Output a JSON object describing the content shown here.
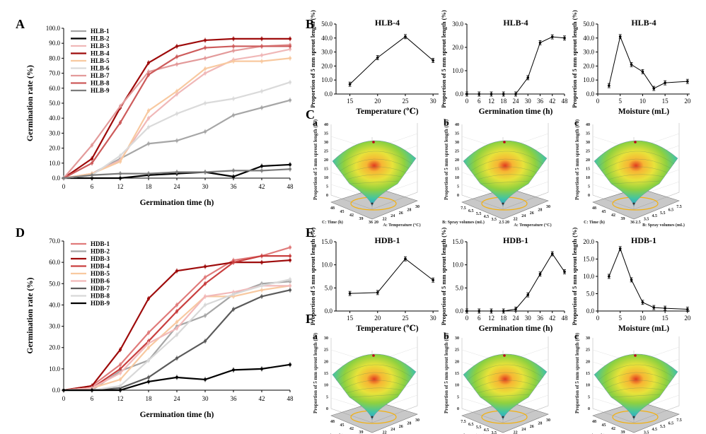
{
  "panel_labels": {
    "A": "A",
    "B": "B",
    "C": "C",
    "D": "D",
    "E": "E",
    "F": "F"
  },
  "colors": {
    "HLB-1": "#a6a6a6",
    "HLB-2": "#000000",
    "HLB-3": "#f0b8b8",
    "HLB-4": "#9e0b0b",
    "HLB-5": "#f8c9a0",
    "HLB-6": "#dadada",
    "HLB-7": "#e39a9a",
    "HLB-8": "#cd5b5b",
    "HLB-9": "#7c7c7c",
    "HDB-1": "#e07b7b",
    "HDB-2": "#a6a6a6",
    "HDB-3": "#9e0b0b",
    "HDB-4": "#c94040",
    "HDB-5": "#f8c9a0",
    "HDB-6": "#f2b9b9",
    "HDB-7": "#5a5a5a",
    "HDB-8": "#d8d8d8",
    "HDB-9": "#000000"
  },
  "chart_data": [
    {
      "id": "A",
      "type": "line",
      "title": "",
      "xlabel": "Germination time (h)",
      "ylabel": "Germination rate (%)",
      "x": [
        0,
        6,
        12,
        18,
        24,
        30,
        36,
        42,
        48
      ],
      "xlim": [
        0,
        48
      ],
      "ylim": [
        0,
        100
      ],
      "yticks": [
        "0.0",
        "10.0",
        "20.0",
        "30.0",
        "40.0",
        "50.0",
        "60.0",
        "70.0",
        "80.0",
        "90.0",
        "100.0"
      ],
      "series": [
        {
          "name": "HLB-1",
          "values": [
            0,
            3,
            13,
            23,
            25,
            31,
            42,
            47,
            52
          ]
        },
        {
          "name": "HLB-2",
          "values": [
            0,
            0,
            0,
            2,
            3,
            4,
            1,
            8,
            9
          ]
        },
        {
          "name": "HLB-3",
          "values": [
            0,
            3,
            12,
            40,
            56,
            70,
            79,
            82,
            86
          ]
        },
        {
          "name": "HLB-4",
          "values": [
            0,
            13,
            47,
            77,
            88,
            92,
            93,
            93,
            93
          ]
        },
        {
          "name": "HLB-5",
          "values": [
            0,
            3,
            11,
            45,
            58,
            73,
            78,
            78,
            80
          ]
        },
        {
          "name": "HLB-6",
          "values": [
            0,
            2,
            15,
            34,
            43,
            50,
            53,
            58,
            64
          ]
        },
        {
          "name": "HLB-7",
          "values": [
            0,
            22,
            48,
            71,
            76,
            80,
            85,
            88,
            89
          ]
        },
        {
          "name": "HLB-8",
          "values": [
            0,
            10,
            37,
            69,
            81,
            87,
            88,
            88,
            88
          ]
        },
        {
          "name": "HLB-9",
          "values": [
            0,
            2,
            3,
            3,
            4,
            4,
            5,
            5,
            6
          ]
        }
      ]
    },
    {
      "id": "B1",
      "type": "line",
      "title": "HLB-4",
      "xlabel": "Temperature (℃)",
      "ylabel": "Proportion of 5 mm sprout length (%)",
      "x": [
        15,
        20,
        25,
        30
      ],
      "xlim": [
        12.5,
        31
      ],
      "ylim": [
        0,
        50
      ],
      "xticks": [
        "15",
        "20",
        "25",
        "30"
      ],
      "yticks": [
        "0.0",
        "10.0",
        "20.0",
        "30.0",
        "40.0",
        "50.0"
      ],
      "values": [
        7,
        26,
        41,
        24
      ]
    },
    {
      "id": "B2",
      "type": "line",
      "title": "HLB-4",
      "xlabel": "Germination time (h)",
      "ylabel": "Proportion of 5 mm sprout length (%)",
      "x": [
        0,
        6,
        12,
        18,
        24,
        30,
        36,
        42,
        48
      ],
      "xlim": [
        0,
        48
      ],
      "ylim": [
        0,
        30
      ],
      "xticks": [
        "0",
        "6",
        "12",
        "18",
        "24",
        "30",
        "36",
        "42",
        "48"
      ],
      "yticks": [
        "0.0",
        "10.0",
        "20.0",
        "30.0"
      ],
      "values": [
        0,
        0,
        0,
        0,
        0,
        7,
        22,
        24.5,
        24
      ]
    },
    {
      "id": "B3",
      "type": "line",
      "title": "HLB-4",
      "xlabel": "Moisture (mL)",
      "ylabel": "Proportion of 5 mm sprout length (%)",
      "x": [
        2.5,
        5,
        7.5,
        10,
        12.5,
        15,
        20
      ],
      "xlim": [
        0,
        20.5
      ],
      "ylim": [
        0,
        50
      ],
      "xticks": [
        "0",
        "5",
        "10",
        "15",
        "20"
      ],
      "yticks": [
        "0.0",
        "10.0",
        "20.0",
        "30.0",
        "40.0",
        "50.0"
      ],
      "values": [
        6,
        41,
        21,
        16,
        4,
        8,
        9
      ]
    },
    {
      "id": "D",
      "type": "line",
      "title": "",
      "xlabel": "Germination time (h)",
      "ylabel": "Germination rate (%)",
      "x": [
        0,
        6,
        12,
        18,
        24,
        30,
        36,
        42,
        48
      ],
      "xlim": [
        0,
        48
      ],
      "ylim": [
        0,
        70
      ],
      "yticks": [
        "0.0",
        "10.0",
        "20.0",
        "30.0",
        "40.0",
        "50.0",
        "60.0",
        "70.0"
      ],
      "series": [
        {
          "name": "HDB-1",
          "values": [
            0,
            2,
            12,
            27,
            40,
            53,
            61,
            63,
            67
          ]
        },
        {
          "name": "HDB-2",
          "values": [
            0,
            0,
            9,
            14,
            30,
            35,
            45,
            50,
            51
          ]
        },
        {
          "name": "HDB-3",
          "values": [
            0,
            2,
            19,
            43,
            56,
            58,
            60,
            60,
            61
          ]
        },
        {
          "name": "HDB-4",
          "values": [
            0,
            1,
            10,
            23,
            37,
            50,
            60,
            63,
            63
          ]
        },
        {
          "name": "HDB-5",
          "values": [
            0,
            1,
            5,
            20,
            32,
            44,
            44,
            47,
            49
          ]
        },
        {
          "name": "HDB-6",
          "values": [
            0,
            1,
            8,
            22,
            29,
            44,
            46,
            49,
            49
          ]
        },
        {
          "name": "HDB-7",
          "values": [
            0,
            0,
            1,
            6,
            15,
            23,
            38,
            44,
            47
          ]
        },
        {
          "name": "HDB-8",
          "values": [
            0,
            0,
            2,
            14,
            26,
            40,
            45,
            49,
            52
          ]
        },
        {
          "name": "HDB-9",
          "values": [
            0,
            0,
            0,
            4,
            6,
            5,
            9.5,
            10,
            12
          ]
        }
      ]
    },
    {
      "id": "E1",
      "type": "line",
      "title": "HDB-1",
      "xlabel": "Temperature (℃)",
      "ylabel": "Proportion of 5 mm sprout length (%)",
      "x": [
        15,
        20,
        25,
        30
      ],
      "xlim": [
        12.5,
        31
      ],
      "ylim": [
        0,
        15
      ],
      "xticks": [
        "15",
        "20",
        "25",
        "30"
      ],
      "yticks": [
        "0.0",
        "5.0",
        "10.0",
        "15.0"
      ],
      "values": [
        3.8,
        4,
        11.3,
        6.7
      ]
    },
    {
      "id": "E2",
      "type": "line",
      "title": "HDB-1",
      "xlabel": "Germination time (h)",
      "ylabel": "Proportion of 5 mm sprout length (%)",
      "x": [
        0,
        6,
        12,
        18,
        24,
        30,
        36,
        42,
        48
      ],
      "xlim": [
        0,
        48
      ],
      "ylim": [
        0,
        15
      ],
      "xticks": [
        "0",
        "6",
        "12",
        "18",
        "24",
        "30",
        "36",
        "42",
        "48"
      ],
      "yticks": [
        "0.0",
        "5.0",
        "10.0",
        "15.0"
      ],
      "values": [
        0,
        0,
        0,
        0,
        0.4,
        3.5,
        8,
        12.4,
        8.5
      ]
    },
    {
      "id": "E3",
      "type": "line",
      "title": "HDB-1",
      "xlabel": "Moisture (mL)",
      "ylabel": "Proportion of 5 mm sprout length (%)",
      "x": [
        2.5,
        5,
        7.5,
        10,
        12.5,
        15,
        20
      ],
      "xlim": [
        0,
        20.5
      ],
      "ylim": [
        0,
        20
      ],
      "xticks": [
        "0",
        "5",
        "10",
        "15",
        "20"
      ],
      "yticks": [
        "0.0",
        "5.0",
        "10.0",
        "15.0",
        "20.0"
      ],
      "values": [
        10,
        18,
        9,
        2.5,
        1,
        0.8,
        0.5
      ]
    }
  ],
  "surfaces": [
    {
      "id": "C-a",
      "letter": "a",
      "zlabel": "Proportion of 5 mm sprout length (%)",
      "zticks": [
        "0",
        "5",
        "10",
        "15",
        "20",
        "25",
        "30",
        "35",
        "40"
      ],
      "left_axis": "C: Time (h)",
      "right_axis": "A: Temperature (°C)",
      "left_ticks": [
        "48",
        "45",
        "42",
        "39",
        "36"
      ],
      "right_ticks": [
        "20",
        "22",
        "24",
        "26",
        "28",
        "30"
      ]
    },
    {
      "id": "C-b",
      "letter": "b",
      "zlabel": "Proportion of 5 mm sprout length (%)",
      "zticks": [
        "0",
        "5",
        "10",
        "15",
        "20",
        "25",
        "30",
        "35",
        "40"
      ],
      "left_axis": "B: Spray volumes (mL)",
      "right_axis": "A: Temperature (°C)",
      "left_ticks": [
        "7.5",
        "6.5",
        "5.5",
        "4.5",
        "3.5",
        "2.5"
      ],
      "right_ticks": [
        "20",
        "22",
        "24",
        "26",
        "28",
        "30"
      ]
    },
    {
      "id": "C-c",
      "letter": "c",
      "zlabel": "Proportion of 5 mm sprout length (%)",
      "zticks": [
        "0",
        "5",
        "10",
        "15",
        "20",
        "25",
        "30",
        "35",
        "40"
      ],
      "left_axis": "C: Time (h)",
      "right_axis": "B: Spray volumes (mL)",
      "left_ticks": [
        "48",
        "45",
        "42",
        "39",
        "36"
      ],
      "right_ticks": [
        "2.5",
        "3.5",
        "4.5",
        "5.5",
        "6.5",
        "7.5"
      ]
    },
    {
      "id": "F-a",
      "letter": "a",
      "zlabel": "Proportion of 5 mm sprout length (%)",
      "zticks": [
        "0",
        "5",
        "10",
        "15",
        "20",
        "25",
        "30"
      ],
      "left_axis": "C: Time (h)",
      "right_axis": "A: Temperature (°C)",
      "left_ticks": [
        "48",
        "45",
        "42",
        "39",
        "36"
      ],
      "right_ticks": [
        "20",
        "22",
        "24",
        "26",
        "28",
        "30"
      ]
    },
    {
      "id": "F-b",
      "letter": "b",
      "zlabel": "Proportion of 5 mm sprout length (%)",
      "zticks": [
        "0",
        "5",
        "10",
        "15",
        "20",
        "25",
        "30"
      ],
      "left_axis": "B: Spray volumes (mL)",
      "right_axis": "A: Temperature (°C)",
      "left_ticks": [
        "7.5",
        "6.5",
        "5.5",
        "4.5",
        "3.5",
        "2.5"
      ],
      "right_ticks": [
        "20",
        "22",
        "24",
        "26",
        "28",
        "30"
      ]
    },
    {
      "id": "F-c",
      "letter": "c",
      "zlabel": "Proportion of 5 mm sprout length (%)",
      "zticks": [
        "0",
        "5",
        "10",
        "15",
        "20",
        "25",
        "30"
      ],
      "left_axis": "C: Time (h)",
      "right_axis": "B: Spray volumes (mL)",
      "left_ticks": [
        "48",
        "45",
        "42",
        "39",
        "36"
      ],
      "right_ticks": [
        "2.5",
        "3.5",
        "4.5",
        "5.5",
        "6.5",
        "7.5"
      ]
    }
  ]
}
